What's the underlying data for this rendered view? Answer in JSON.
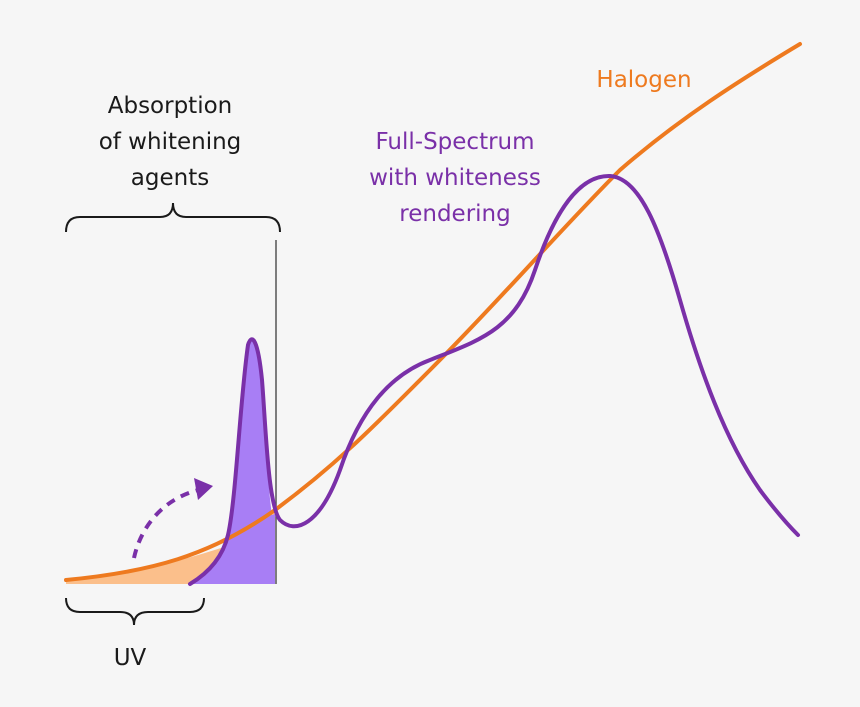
{
  "labels": {
    "absorption": [
      "Absorption",
      "of whitening",
      "agents"
    ],
    "full_spectrum": [
      "Full-Spectrum",
      "with whiteness",
      "rendering"
    ],
    "halogen": "Halogen",
    "uv": "UV"
  },
  "colors": {
    "halogen": "#ee7a1f",
    "halogen_fill": "#fbbf8b",
    "full_spectrum": "#7a30a8",
    "full_spectrum_fill": "#a87ef5",
    "text": "#1a1a1a",
    "background": "#f6f6f6"
  },
  "icons": {
    "arrow": "dashed-curved-arrow-icon",
    "brace_absorption": "curly-brace-icon",
    "brace_uv": "curly-brace-icon"
  }
}
